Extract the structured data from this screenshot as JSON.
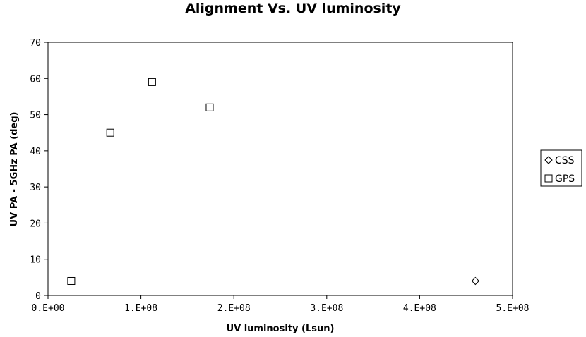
{
  "chart_data": {
    "type": "scatter",
    "title": "Alignment Vs. UV luminosity",
    "xlabel": "UV luminosity (Lsun)",
    "ylabel": "UV PA - 5GHz PA (deg)",
    "xlim": [
      0,
      500000000
    ],
    "ylim": [
      0,
      70
    ],
    "x_ticks": [
      0,
      100000000,
      200000000,
      300000000,
      400000000,
      500000000
    ],
    "x_tick_labels": [
      "0.E+00",
      "1.E+08",
      "2.E+08",
      "3.E+08",
      "4.E+08",
      "5.E+08"
    ],
    "y_ticks": [
      0,
      10,
      20,
      30,
      40,
      50,
      60,
      70
    ],
    "y_tick_labels": [
      "0",
      "10",
      "20",
      "30",
      "40",
      "50",
      "60",
      "70"
    ],
    "grid": false,
    "legend_position": "right",
    "series": [
      {
        "name": "CSS",
        "marker": "diamond",
        "color": "#000000",
        "points": [
          {
            "x": 460000000,
            "y": 4
          }
        ]
      },
      {
        "name": "GPS",
        "marker": "square",
        "color": "#000000",
        "points": [
          {
            "x": 25000000,
            "y": 4
          },
          {
            "x": 67000000,
            "y": 45
          },
          {
            "x": 112000000,
            "y": 59
          },
          {
            "x": 174000000,
            "y": 52
          }
        ]
      }
    ]
  }
}
